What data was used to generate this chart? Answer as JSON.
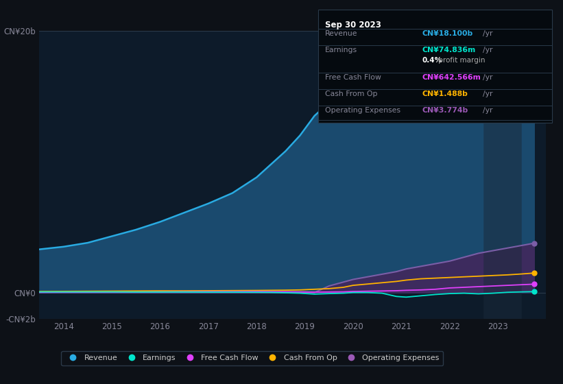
{
  "background_color": "#0d1117",
  "plot_bg_color": "#0d1b2a",
  "years": [
    2013.5,
    2014,
    2014.5,
    2015,
    2015.5,
    2016,
    2016.5,
    2017,
    2017.5,
    2018,
    2018.3,
    2018.6,
    2018.9,
    2019.2,
    2019.5,
    2019.8,
    2020.0,
    2020.3,
    2020.6,
    2020.9,
    2021.1,
    2021.4,
    2021.7,
    2022.0,
    2022.3,
    2022.6,
    2022.9,
    2023.2,
    2023.5,
    2023.75
  ],
  "revenue": [
    3.3,
    3.5,
    3.8,
    4.3,
    4.8,
    5.4,
    6.1,
    6.8,
    7.6,
    8.8,
    9.8,
    10.8,
    12.0,
    13.5,
    14.5,
    15.2,
    15.8,
    16.0,
    16.2,
    16.5,
    17.0,
    17.0,
    16.8,
    17.2,
    17.5,
    17.8,
    18.0,
    17.8,
    18.0,
    18.1
  ],
  "earnings": [
    0.05,
    0.05,
    0.05,
    0.05,
    0.04,
    0.04,
    0.04,
    0.03,
    0.03,
    0.02,
    0.01,
    -0.02,
    -0.05,
    -0.12,
    -0.08,
    -0.05,
    0.0,
    0.0,
    -0.05,
    -0.3,
    -0.35,
    -0.25,
    -0.15,
    -0.08,
    -0.05,
    -0.1,
    -0.05,
    0.02,
    0.05,
    0.07
  ],
  "free_cash_flow": [
    0.02,
    0.03,
    0.03,
    0.04,
    0.04,
    0.05,
    0.06,
    0.07,
    0.07,
    0.08,
    0.07,
    0.06,
    0.05,
    0.03,
    0.04,
    0.05,
    0.08,
    0.1,
    0.12,
    0.14,
    0.17,
    0.2,
    0.25,
    0.35,
    0.4,
    0.45,
    0.5,
    0.55,
    0.6,
    0.64
  ],
  "cash_from_op": [
    0.08,
    0.09,
    0.1,
    0.11,
    0.12,
    0.13,
    0.13,
    0.14,
    0.15,
    0.16,
    0.17,
    0.18,
    0.2,
    0.25,
    0.3,
    0.4,
    0.55,
    0.65,
    0.75,
    0.85,
    0.95,
    1.05,
    1.1,
    1.15,
    1.2,
    1.25,
    1.3,
    1.35,
    1.42,
    1.49
  ],
  "operating_expenses": [
    0.0,
    0.0,
    0.0,
    0.0,
    0.0,
    0.0,
    0.0,
    0.0,
    0.0,
    0.0,
    0.0,
    0.0,
    0.0,
    0.0,
    0.5,
    0.8,
    1.0,
    1.2,
    1.4,
    1.6,
    1.8,
    2.0,
    2.2,
    2.4,
    2.7,
    3.0,
    3.2,
    3.4,
    3.6,
    3.77
  ],
  "revenue_color": "#29abe2",
  "revenue_fill_color": "#1a4a6e",
  "earnings_color": "#00e5cc",
  "free_cash_flow_color": "#e040fb",
  "cash_from_op_color": "#ffb300",
  "operating_expenses_color": "#7b5ea7",
  "operating_expenses_fill_color": "#3d2b5e",
  "ylim_min": -2,
  "ylim_max": 20,
  "xtick_years": [
    2014,
    2015,
    2016,
    2017,
    2018,
    2019,
    2020,
    2021,
    2022,
    2023
  ],
  "xmin": 2013.5,
  "xmax": 2024.0,
  "info_box": {
    "date": "Sep 30 2023",
    "revenue_label": "Revenue",
    "revenue_value": "CN¥18.100b",
    "revenue_unit": "/yr",
    "revenue_color": "#29abe2",
    "earnings_label": "Earnings",
    "earnings_value": "CN¥74.836m",
    "earnings_unit": "/yr",
    "earnings_color": "#00e5cc",
    "profit_margin_bold": "0.4%",
    "profit_margin_text": " profit margin",
    "fcf_label": "Free Cash Flow",
    "fcf_value": "CN¥642.566m",
    "fcf_unit": "/yr",
    "fcf_color": "#e040fb",
    "cfop_label": "Cash From Op",
    "cfop_value": "CN¥1.488b",
    "cfop_unit": "/yr",
    "cfop_color": "#ffb300",
    "opex_label": "Operating Expenses",
    "opex_value": "CN¥3.774b",
    "opex_unit": "/yr",
    "opex_color": "#9b59b6"
  },
  "legend_labels": [
    "Revenue",
    "Earnings",
    "Free Cash Flow",
    "Cash From Op",
    "Operating Expenses"
  ],
  "legend_colors": [
    "#29abe2",
    "#00e5cc",
    "#e040fb",
    "#ffb300",
    "#9b59b6"
  ]
}
